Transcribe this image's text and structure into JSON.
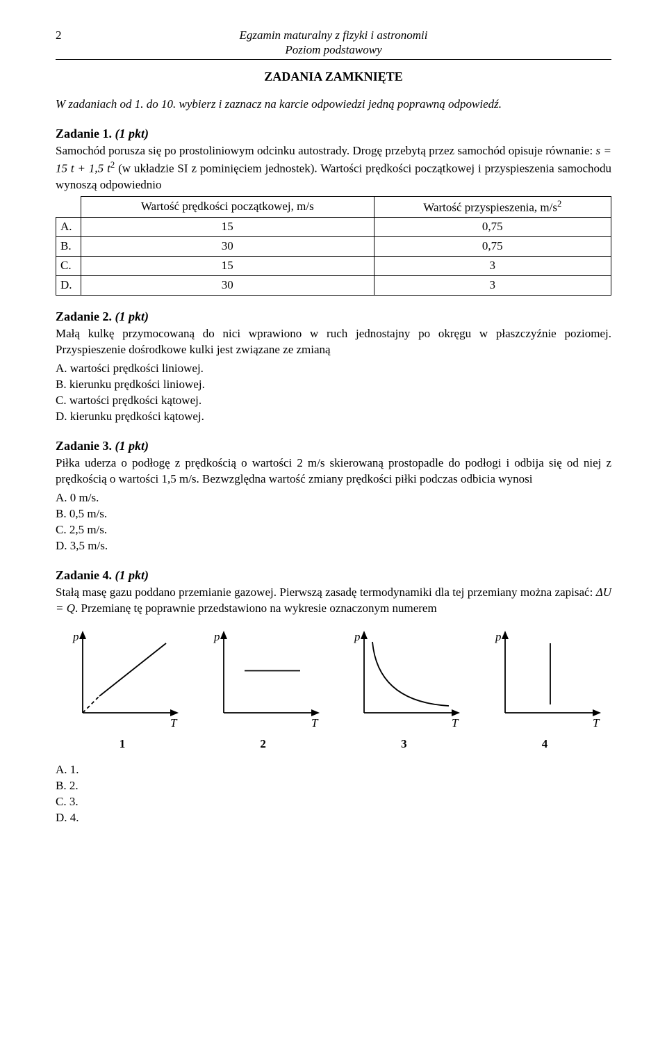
{
  "page_number": "2",
  "header_title_line1": "Egzamin maturalny z fizyki i astronomii",
  "header_title_line2": "Poziom podstawowy",
  "section_title": "ZADANIA ZAMKNIĘTE",
  "instructions": "W zadaniach od 1. do 10. wybierz i zaznacz na karcie odpowiedzi jedną poprawną odpowiedź.",
  "task1": {
    "heading": "Zadanie 1.",
    "points": "(1 pkt)",
    "text_before": "Samochód porusza się po prostoliniowym odcinku autostrady. Drogę przebytą przez samochód opisuje równanie: ",
    "equation": "s = 15 t + 1,5 t",
    "equation_exp": "2",
    "text_after": " (w układzie SI z pominięciem jednostek). Wartości prędkości początkowej i przyspieszenia samochodu wynoszą odpowiednio",
    "table": {
      "col1_header": "Wartość prędkości początkowej, m/s",
      "col2_header_pre": "Wartość przyspieszenia, m/s",
      "col2_header_exp": "2",
      "rows": [
        {
          "label": "A.",
          "c1": "15",
          "c2": "0,75"
        },
        {
          "label": "B.",
          "c1": "30",
          "c2": "0,75"
        },
        {
          "label": "C.",
          "c1": "15",
          "c2": "3"
        },
        {
          "label": "D.",
          "c1": "30",
          "c2": "3"
        }
      ]
    }
  },
  "task2": {
    "heading": "Zadanie 2.",
    "points": "(1 pkt)",
    "text": "Małą kulkę przymocowaną do nici wprawiono w ruch jednostajny po okręgu w płaszczyźnie poziomej. Przyspieszenie dośrodkowe kulki jest związane ze zmianą",
    "options": [
      "A. wartości prędkości liniowej.",
      "B. kierunku prędkości liniowej.",
      "C. wartości prędkości kątowej.",
      "D. kierunku prędkości kątowej."
    ]
  },
  "task3": {
    "heading": "Zadanie 3.",
    "points": "(1 pkt)",
    "text": "Piłka uderza o podłogę z prędkością o wartości 2 m/s skierowaną prostopadle do podłogi i odbija się od niej z prędkością o wartości 1,5 m/s. Bezwzględna wartość zmiany prędkości piłki podczas odbicia wynosi",
    "options": [
      "A. 0 m/s.",
      "B. 0,5 m/s.",
      "C. 2,5 m/s.",
      "D. 3,5 m/s."
    ]
  },
  "task4": {
    "heading": "Zadanie 4.",
    "points": "(1 pkt)",
    "text_before": "Stałą masę gazu poddano przemianie gazowej. Pierwszą zasadę termodynamiki dla tej przemiany można zapisać: ",
    "equation": "ΔU = Q",
    "text_after": ". Przemianę tę poprawnie przedstawiono na wykresie oznaczonym numerem",
    "charts": {
      "axis_y": "p",
      "axis_x": "T",
      "axis_fontsize": 17,
      "axis_fontstyle": "italic",
      "stroke_color": "#000000",
      "stroke_width": 1.8,
      "width": 170,
      "height": 150,
      "numbers": [
        "1",
        "2",
        "3",
        "4"
      ],
      "shapes": [
        "linear_through_origin",
        "horizontal",
        "hyperbola",
        "vertical"
      ]
    },
    "options": [
      "A. 1.",
      "B. 2.",
      "C. 3.",
      "D. 4."
    ]
  }
}
